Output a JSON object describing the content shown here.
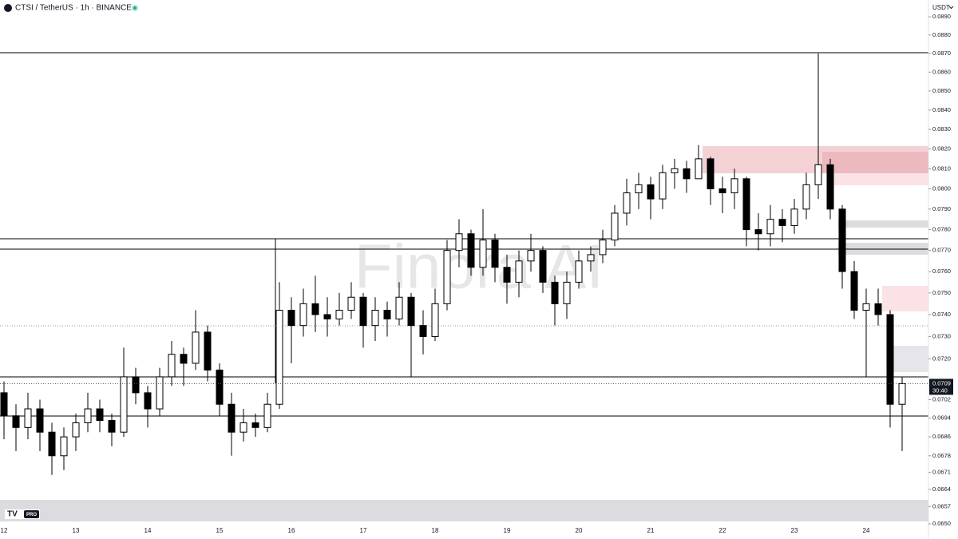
{
  "header": {
    "title": "CTSI / TetherUS · 1h · BINANCE",
    "currency": "USDT",
    "watermark": "Finora AI",
    "badge": "PRO"
  },
  "chart_data": {
    "type": "candlestick",
    "log_scale": true,
    "up_color": "#ffffff",
    "down_color": "#000000",
    "categories": [
      "12",
      null,
      null,
      null,
      null,
      null,
      "13",
      null,
      null,
      null,
      null,
      null,
      "14",
      null,
      null,
      null,
      null,
      null,
      "15",
      null,
      null,
      null,
      null,
      null,
      "16",
      null,
      null,
      null,
      null,
      null,
      "17",
      null,
      null,
      null,
      null,
      null,
      "18",
      null,
      null,
      null,
      null,
      null,
      "19",
      null,
      null,
      null,
      null,
      null,
      "20",
      null,
      null,
      null,
      null,
      null,
      "21",
      null,
      null,
      null,
      null,
      null,
      "22",
      null,
      null,
      null,
      null,
      null,
      "23",
      null,
      null,
      null,
      null,
      null,
      "24",
      null,
      null,
      null
    ],
    "open": [
      0.0705,
      0.0695,
      0.069,
      0.0698,
      0.0688,
      0.0678,
      0.0686,
      0.0692,
      0.0698,
      0.0693,
      0.0688,
      0.0712,
      0.0705,
      0.0698,
      0.0712,
      0.0722,
      0.0718,
      0.0732,
      0.0715,
      0.07,
      0.0688,
      0.0692,
      0.069,
      0.07,
      0.0742,
      0.0735,
      0.0745,
      0.074,
      0.0738,
      0.0742,
      0.0748,
      0.0735,
      0.0742,
      0.0738,
      0.0748,
      0.0735,
      0.073,
      0.0745,
      0.077,
      0.0778,
      0.0762,
      0.0775,
      0.0762,
      0.0755,
      0.0765,
      0.077,
      0.0755,
      0.0745,
      0.0755,
      0.0765,
      0.0768,
      0.0775,
      0.0788,
      0.0798,
      0.0802,
      0.0795,
      0.0808,
      0.081,
      0.0805,
      0.0815,
      0.08,
      0.0798,
      0.0805,
      0.078,
      0.0778,
      0.0785,
      0.0782,
      0.079,
      0.0802,
      0.0812,
      0.079,
      0.076,
      0.0742,
      0.0745,
      0.074,
      0.07
    ],
    "high": [
      0.071,
      0.07,
      0.0705,
      0.0702,
      0.0692,
      0.069,
      0.0696,
      0.0705,
      0.0702,
      0.0696,
      0.0725,
      0.0716,
      0.0708,
      0.0716,
      0.0728,
      0.0725,
      0.0742,
      0.0735,
      0.0718,
      0.0705,
      0.0698,
      0.0696,
      0.0705,
      0.0755,
      0.0748,
      0.0752,
      0.0758,
      0.0748,
      0.075,
      0.0755,
      0.075,
      0.0748,
      0.0746,
      0.0755,
      0.075,
      0.0742,
      0.0752,
      0.0775,
      0.0785,
      0.078,
      0.079,
      0.0778,
      0.0768,
      0.077,
      0.0778,
      0.0772,
      0.0758,
      0.076,
      0.077,
      0.0772,
      0.078,
      0.0792,
      0.0805,
      0.0808,
      0.0806,
      0.0812,
      0.0815,
      0.0814,
      0.0822,
      0.0816,
      0.0806,
      0.081,
      0.0806,
      0.0788,
      0.0792,
      0.079,
      0.0795,
      0.0808,
      0.087,
      0.0815,
      0.0792,
      0.0765,
      0.0752,
      0.0752,
      0.0742,
      0.0712
    ],
    "low": [
      0.0685,
      0.068,
      0.0685,
      0.068,
      0.067,
      0.0672,
      0.068,
      0.0688,
      0.0688,
      0.0682,
      0.0686,
      0.07,
      0.069,
      0.0695,
      0.0708,
      0.0708,
      0.0715,
      0.071,
      0.0695,
      0.0678,
      0.0684,
      0.0686,
      0.0688,
      0.0698,
      0.0718,
      0.073,
      0.0732,
      0.073,
      0.0735,
      0.0738,
      0.0725,
      0.0728,
      0.073,
      0.0735,
      0.0712,
      0.0722,
      0.0728,
      0.0742,
      0.0762,
      0.0758,
      0.0758,
      0.0755,
      0.0745,
      0.0748,
      0.076,
      0.075,
      0.0735,
      0.0738,
      0.0752,
      0.076,
      0.0764,
      0.0772,
      0.0782,
      0.079,
      0.0785,
      0.079,
      0.08,
      0.0798,
      0.0805,
      0.0792,
      0.0788,
      0.079,
      0.0772,
      0.077,
      0.0772,
      0.0774,
      0.0778,
      0.0785,
      0.0795,
      0.0785,
      0.0752,
      0.0738,
      0.0712,
      0.0735,
      0.069,
      0.068
    ],
    "close": [
      0.0695,
      0.069,
      0.0698,
      0.0688,
      0.0678,
      0.0686,
      0.0692,
      0.0698,
      0.0693,
      0.0688,
      0.0712,
      0.0705,
      0.0698,
      0.0712,
      0.0722,
      0.0718,
      0.0732,
      0.0715,
      0.07,
      0.0688,
      0.0692,
      0.069,
      0.07,
      0.0742,
      0.0735,
      0.0745,
      0.074,
      0.0738,
      0.0742,
      0.0748,
      0.0735,
      0.0742,
      0.0738,
      0.0748,
      0.0735,
      0.073,
      0.0745,
      0.077,
      0.0778,
      0.0762,
      0.0775,
      0.0762,
      0.0755,
      0.0765,
      0.077,
      0.0755,
      0.0745,
      0.0755,
      0.0765,
      0.0768,
      0.0775,
      0.0788,
      0.0798,
      0.0802,
      0.0795,
      0.0808,
      0.081,
      0.0805,
      0.0815,
      0.08,
      0.0798,
      0.0805,
      0.078,
      0.0778,
      0.0785,
      0.0782,
      0.079,
      0.0802,
      0.0812,
      0.079,
      0.076,
      0.0742,
      0.0745,
      0.074,
      0.07,
      0.0709
    ],
    "ylim": [
      0.065,
      0.089
    ],
    "yticks": [
      {
        "value": 0.089,
        "label": "0.0890"
      },
      {
        "value": 0.088,
        "label": "0.0880"
      },
      {
        "value": 0.087,
        "label": "0.0870"
      },
      {
        "value": 0.086,
        "label": "0.0860"
      },
      {
        "value": 0.085,
        "label": "0.0850"
      },
      {
        "value": 0.084,
        "label": "0.0840"
      },
      {
        "value": 0.083,
        "label": "0.0830"
      },
      {
        "value": 0.082,
        "label": "0.0820"
      },
      {
        "value": 0.081,
        "label": "0.0810"
      },
      {
        "value": 0.08,
        "label": "0.0800"
      },
      {
        "value": 0.079,
        "label": "0.0790"
      },
      {
        "value": 0.078,
        "label": "0.0780"
      },
      {
        "value": 0.077,
        "label": "0.0770"
      },
      {
        "value": 0.076,
        "label": "0.0760"
      },
      {
        "value": 0.075,
        "label": "0.0750"
      },
      {
        "value": 0.074,
        "label": "0.0740"
      },
      {
        "value": 0.073,
        "label": "0.0730"
      },
      {
        "value": 0.072,
        "label": "0.0720"
      },
      {
        "value": 0.0702,
        "label": "0.0702"
      },
      {
        "value": 0.0694,
        "label": "0.0694"
      },
      {
        "value": 0.0686,
        "label": "0.0686"
      },
      {
        "value": 0.0678,
        "label": "0.0678"
      },
      {
        "value": 0.0671,
        "label": "0.0671"
      },
      {
        "value": 0.0664,
        "label": "0.0664"
      },
      {
        "value": 0.0657,
        "label": "0.0657"
      },
      {
        "value": 0.065,
        "label": "0.0650"
      }
    ],
    "last_price": {
      "value": 0.0709,
      "label": "0.0709"
    },
    "countdown": "30:40"
  }
}
